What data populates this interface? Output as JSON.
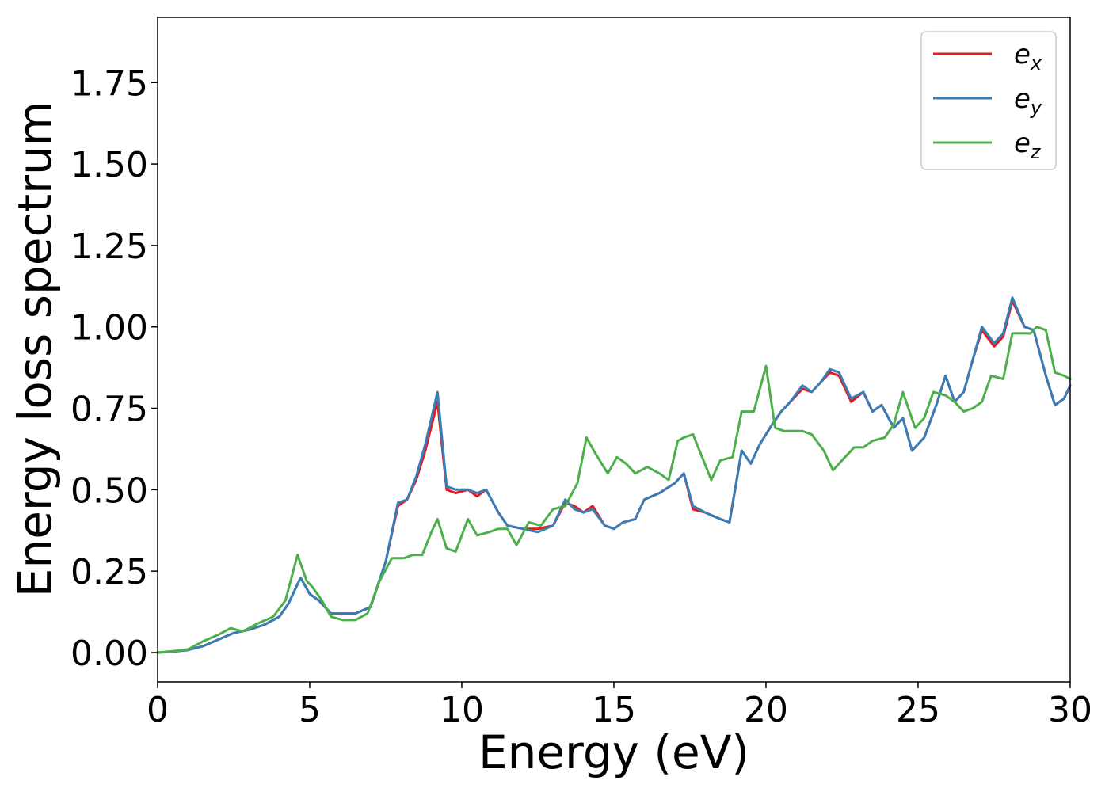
{
  "chart_data": {
    "type": "line",
    "xlabel": "Energy (eV)",
    "ylabel": "Energy loss spectrum",
    "xlim": [
      0,
      30
    ],
    "ylim": [
      -0.09,
      1.95
    ],
    "xticks": [
      0,
      5,
      10,
      15,
      20,
      25,
      30
    ],
    "xtick_labels": [
      "0",
      "5",
      "10",
      "15",
      "20",
      "25",
      "30"
    ],
    "yticks": [
      0.0,
      0.25,
      0.5,
      0.75,
      1.0,
      1.25,
      1.5,
      1.75
    ],
    "ytick_labels": [
      "0.00",
      "0.25",
      "0.50",
      "0.75",
      "1.00",
      "1.25",
      "1.50",
      "1.75"
    ],
    "grid": false,
    "legend_position": "top-right",
    "series": [
      {
        "name": "e",
        "subscript": "x",
        "color": "#e41a1c",
        "x": [
          0,
          0.5,
          1.0,
          1.5,
          2.0,
          2.5,
          3.0,
          3.5,
          4.0,
          4.3,
          4.7,
          5.0,
          5.3,
          5.7,
          6.0,
          6.5,
          7.0,
          7.5,
          7.9,
          8.2,
          8.5,
          8.8,
          9.2,
          9.5,
          9.8,
          10.2,
          10.5,
          10.8,
          11.2,
          11.5,
          12.0,
          12.5,
          13.0,
          13.4,
          13.7,
          14.0,
          14.3,
          14.7,
          15.0,
          15.3,
          15.7,
          16.0,
          16.5,
          17.0,
          17.3,
          17.6,
          18.0,
          18.5,
          18.8,
          19.2,
          19.5,
          19.8,
          20.2,
          20.5,
          20.8,
          21.2,
          21.5,
          21.8,
          22.1,
          22.4,
          22.8,
          23.2,
          23.5,
          23.8,
          24.2,
          24.5,
          24.8,
          25.2,
          25.6,
          25.9,
          26.2,
          26.5,
          26.8,
          27.1,
          27.5,
          27.8,
          28.1,
          28.5,
          28.8,
          29.2,
          29.5,
          29.8,
          30.0
        ],
        "values": [
          0.0,
          0.003,
          0.008,
          0.02,
          0.04,
          0.06,
          0.07,
          0.085,
          0.11,
          0.15,
          0.23,
          0.18,
          0.16,
          0.12,
          0.12,
          0.12,
          0.14,
          0.28,
          0.45,
          0.47,
          0.53,
          0.62,
          0.77,
          0.5,
          0.49,
          0.5,
          0.48,
          0.5,
          0.43,
          0.39,
          0.38,
          0.38,
          0.39,
          0.46,
          0.45,
          0.43,
          0.45,
          0.39,
          0.38,
          0.4,
          0.41,
          0.47,
          0.49,
          0.52,
          0.55,
          0.44,
          0.43,
          0.41,
          0.4,
          0.62,
          0.58,
          0.64,
          0.7,
          0.74,
          0.77,
          0.81,
          0.8,
          0.83,
          0.86,
          0.85,
          0.77,
          0.8,
          0.74,
          0.76,
          0.69,
          0.72,
          0.62,
          0.66,
          0.76,
          0.85,
          0.77,
          0.8,
          0.9,
          0.99,
          0.94,
          0.97,
          1.08,
          1.0,
          0.99,
          0.85,
          0.76,
          0.78,
          0.82
        ]
      },
      {
        "name": "e",
        "subscript": "y",
        "color": "#377eb8",
        "x": [
          0,
          0.5,
          1.0,
          1.5,
          2.0,
          2.5,
          3.0,
          3.5,
          4.0,
          4.3,
          4.7,
          5.0,
          5.3,
          5.7,
          6.0,
          6.5,
          7.0,
          7.5,
          7.9,
          8.2,
          8.5,
          8.8,
          9.2,
          9.5,
          9.8,
          10.2,
          10.5,
          10.8,
          11.2,
          11.5,
          12.0,
          12.5,
          13.0,
          13.4,
          13.7,
          14.0,
          14.3,
          14.7,
          15.0,
          15.3,
          15.7,
          16.0,
          16.5,
          17.0,
          17.3,
          17.6,
          18.0,
          18.5,
          18.8,
          19.2,
          19.5,
          19.8,
          20.2,
          20.5,
          20.8,
          21.2,
          21.5,
          21.8,
          22.1,
          22.4,
          22.8,
          23.2,
          23.5,
          23.8,
          24.2,
          24.5,
          24.8,
          25.2,
          25.6,
          25.9,
          26.2,
          26.5,
          26.8,
          27.1,
          27.5,
          27.8,
          28.1,
          28.5,
          28.8,
          29.2,
          29.5,
          29.8,
          30.0
        ],
        "values": [
          0.0,
          0.003,
          0.008,
          0.02,
          0.04,
          0.06,
          0.07,
          0.085,
          0.11,
          0.15,
          0.23,
          0.18,
          0.16,
          0.12,
          0.12,
          0.12,
          0.14,
          0.28,
          0.46,
          0.47,
          0.54,
          0.64,
          0.8,
          0.51,
          0.5,
          0.5,
          0.49,
          0.5,
          0.43,
          0.39,
          0.38,
          0.37,
          0.39,
          0.47,
          0.44,
          0.43,
          0.44,
          0.39,
          0.38,
          0.4,
          0.41,
          0.47,
          0.49,
          0.52,
          0.55,
          0.45,
          0.43,
          0.41,
          0.4,
          0.62,
          0.58,
          0.64,
          0.7,
          0.74,
          0.77,
          0.82,
          0.8,
          0.83,
          0.87,
          0.86,
          0.78,
          0.8,
          0.74,
          0.76,
          0.69,
          0.72,
          0.62,
          0.66,
          0.76,
          0.85,
          0.77,
          0.8,
          0.9,
          1.0,
          0.95,
          0.98,
          1.09,
          1.0,
          0.99,
          0.85,
          0.76,
          0.78,
          0.82
        ]
      },
      {
        "name": "e",
        "subscript": "z",
        "color": "#4daf4a",
        "x": [
          0,
          0.5,
          1.0,
          1.5,
          2.0,
          2.4,
          2.8,
          3.3,
          3.8,
          4.2,
          4.6,
          4.9,
          5.1,
          5.4,
          5.7,
          6.1,
          6.5,
          6.9,
          7.3,
          7.7,
          8.1,
          8.4,
          8.7,
          9.0,
          9.2,
          9.5,
          9.8,
          10.2,
          10.5,
          10.9,
          11.2,
          11.5,
          11.8,
          12.2,
          12.6,
          13.0,
          13.4,
          13.8,
          14.1,
          14.4,
          14.8,
          15.1,
          15.4,
          15.7,
          16.1,
          16.5,
          16.8,
          17.1,
          17.3,
          17.6,
          17.9,
          18.2,
          18.5,
          18.9,
          19.2,
          19.6,
          20.0,
          20.3,
          20.6,
          20.9,
          21.2,
          21.5,
          21.9,
          22.2,
          22.6,
          22.9,
          23.2,
          23.5,
          23.9,
          24.2,
          24.5,
          24.9,
          25.2,
          25.5,
          25.9,
          26.2,
          26.5,
          26.8,
          27.1,
          27.4,
          27.8,
          28.1,
          28.4,
          28.7,
          28.9,
          29.2,
          29.5,
          29.8,
          30.0
        ],
        "values": [
          0.0,
          0.004,
          0.01,
          0.035,
          0.055,
          0.075,
          0.065,
          0.09,
          0.11,
          0.16,
          0.3,
          0.22,
          0.2,
          0.16,
          0.11,
          0.1,
          0.1,
          0.12,
          0.22,
          0.29,
          0.29,
          0.3,
          0.3,
          0.37,
          0.41,
          0.32,
          0.31,
          0.41,
          0.36,
          0.37,
          0.38,
          0.38,
          0.33,
          0.4,
          0.39,
          0.44,
          0.45,
          0.52,
          0.66,
          0.61,
          0.55,
          0.6,
          0.58,
          0.55,
          0.57,
          0.55,
          0.53,
          0.65,
          0.66,
          0.67,
          0.6,
          0.53,
          0.59,
          0.6,
          0.74,
          0.74,
          0.88,
          0.69,
          0.68,
          0.68,
          0.68,
          0.67,
          0.62,
          0.56,
          0.6,
          0.63,
          0.63,
          0.65,
          0.66,
          0.7,
          0.8,
          0.69,
          0.72,
          0.8,
          0.79,
          0.77,
          0.74,
          0.75,
          0.77,
          0.85,
          0.84,
          0.98,
          0.98,
          0.98,
          1.0,
          0.99,
          0.86,
          0.85,
          0.84
        ]
      }
    ]
  }
}
